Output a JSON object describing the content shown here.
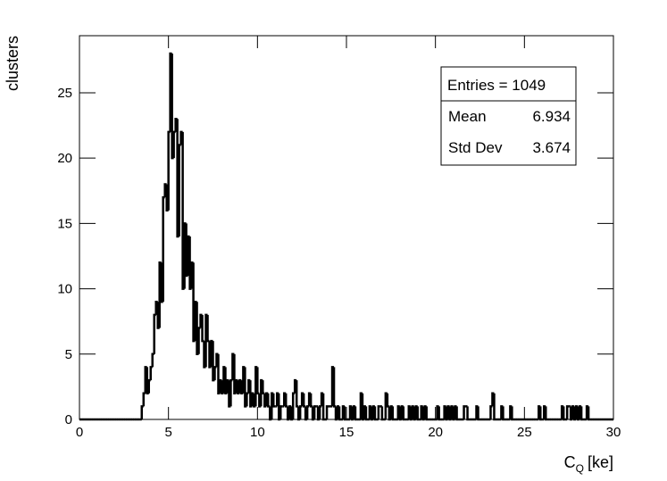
{
  "chart_data": {
    "type": "histogram",
    "ylabel": "clusters",
    "xlabel": {
      "main": "C",
      "sub": "Q",
      "unit": "[ke]"
    },
    "color": "#000000",
    "xlim": [
      0,
      30
    ],
    "ylim": [
      0,
      29.37
    ],
    "xticks": [
      0,
      5,
      10,
      15,
      20,
      25,
      30
    ],
    "yticks": [
      0,
      5,
      10,
      15,
      20,
      25
    ],
    "stats": {
      "entries": "Entries = 1049",
      "rows": [
        {
          "label": "Mean",
          "value": 6.934
        },
        {
          "label": "Std Dev",
          "value": 3.674
        }
      ]
    },
    "bins": [
      0,
      0.1,
      0.2,
      0.3,
      0.4,
      0.5,
      0.6,
      0.7,
      0.8,
      0.9,
      1,
      1.1,
      1.2,
      1.3,
      1.4,
      1.5,
      1.6,
      1.7,
      1.8,
      1.9,
      2,
      2.1,
      2.2,
      2.3,
      2.4,
      2.5,
      2.6,
      2.7,
      2.8,
      2.9,
      3,
      3.1,
      3.2,
      3.3,
      3.4,
      3.5,
      3.6,
      3.7,
      3.8,
      3.9,
      4,
      4.1,
      4.2,
      4.3,
      4.4,
      4.5,
      4.6,
      4.7,
      4.8,
      4.9,
      5,
      5.1,
      5.2,
      5.3,
      5.4,
      5.5,
      5.6,
      5.7,
      5.8,
      5.9,
      6,
      6.1,
      6.2,
      6.3,
      6.4,
      6.5,
      6.6,
      6.7,
      6.8,
      6.9,
      7,
      7.1,
      7.2,
      7.3,
      7.4,
      7.5,
      7.6,
      7.7,
      7.8,
      7.9,
      8,
      8.1,
      8.2,
      8.3,
      8.4,
      8.5,
      8.6,
      8.7,
      8.8,
      8.9,
      9,
      9.1,
      9.2,
      9.3,
      9.4,
      9.5,
      9.6,
      9.7,
      9.8,
      9.9,
      10,
      10.1,
      10.2,
      10.3,
      10.4,
      10.5,
      10.6,
      10.7,
      10.8,
      10.9,
      11,
      11.1,
      11.2,
      11.3,
      11.4,
      11.5,
      11.6,
      11.7,
      11.8,
      11.9,
      12,
      12.1,
      12.2,
      12.3,
      12.4,
      12.5,
      12.6,
      12.7,
      12.8,
      12.9,
      13,
      13.1,
      13.2,
      13.3,
      13.4,
      13.5,
      13.6,
      13.7,
      13.8,
      13.9,
      14,
      14.1,
      14.2,
      14.3,
      14.4,
      14.5,
      14.6,
      14.7,
      14.8,
      14.9,
      15,
      15.1,
      15.2,
      15.3,
      15.4,
      15.5,
      15.6,
      15.7,
      15.8,
      15.9,
      16,
      16.1,
      16.2,
      16.3,
      16.4,
      16.5,
      16.6,
      16.7,
      16.8,
      16.9,
      17,
      17.1,
      17.2,
      17.3,
      17.4,
      17.5,
      17.6,
      17.7,
      17.8,
      17.9,
      18,
      18.1,
      18.2,
      18.3,
      18.4,
      18.5,
      18.6,
      18.7,
      18.8,
      18.9,
      19,
      19.1,
      19.2,
      19.3,
      19.4,
      19.5,
      19.6,
      19.7,
      19.8,
      19.9,
      20,
      20.1,
      20.2,
      20.3,
      20.4,
      20.5,
      20.6,
      20.7,
      20.8,
      20.9,
      21,
      21.1,
      21.2,
      21.3,
      21.4,
      21.5,
      21.6,
      21.7,
      21.8,
      21.9,
      22,
      22.1,
      22.2,
      22.3,
      22.4,
      22.5,
      22.6,
      22.7,
      22.8,
      22.9,
      23,
      23.1,
      23.2,
      23.3,
      23.4,
      23.5,
      23.6,
      23.7,
      23.8,
      23.9,
      24,
      24.1,
      24.2,
      24.3,
      24.4,
      24.5,
      24.6,
      24.7,
      24.8,
      24.9,
      25,
      25.1,
      25.2,
      25.3,
      25.4,
      25.5,
      25.6,
      25.7,
      25.8,
      25.9,
      26,
      26.1,
      26.2,
      26.3,
      26.4,
      26.5,
      26.6,
      26.7,
      26.8,
      26.9,
      27,
      27.1,
      27.2,
      27.3,
      27.4,
      27.5,
      27.6,
      27.7,
      27.8,
      27.9,
      28,
      28.1,
      28.2,
      28.3,
      28.4,
      28.5,
      28.6,
      28.7,
      28.8,
      28.9,
      29,
      29.1,
      29.2,
      29.3,
      29.4,
      29.5,
      29.6,
      29.7,
      29.8,
      29.9,
      30
    ],
    "values": [
      0,
      0,
      0,
      0,
      0,
      0,
      0,
      0,
      0,
      0,
      0,
      0,
      0,
      0,
      0,
      0,
      0,
      0,
      0,
      0,
      0,
      0,
      0,
      0,
      0,
      0,
      0,
      0,
      0,
      0,
      0,
      0,
      0,
      0,
      0,
      1,
      2,
      4,
      2,
      3,
      4,
      5,
      8,
      9,
      7,
      12,
      9,
      17,
      18,
      16,
      22,
      28,
      20,
      22,
      23,
      14,
      21,
      22,
      10,
      15,
      11,
      14,
      10,
      12,
      6,
      9,
      5,
      7,
      8,
      6,
      4,
      8,
      6,
      4,
      6,
      3,
      4,
      5,
      2,
      3,
      2,
      4,
      2,
      3,
      1,
      3,
      5,
      2,
      3,
      2,
      3,
      2,
      4,
      1,
      2,
      3,
      1,
      2,
      1,
      4,
      2,
      1,
      3,
      2,
      1,
      2,
      1,
      0,
      2,
      1,
      1,
      2,
      0,
      1,
      1,
      2,
      1,
      0,
      1,
      0,
      2,
      3,
      1,
      0,
      1,
      2,
      1,
      0,
      1,
      2,
      1,
      0,
      1,
      1,
      0,
      1,
      2,
      0,
      0,
      1,
      1,
      1,
      4,
      1,
      0,
      1,
      0,
      0,
      1,
      0,
      0,
      0,
      1,
      0,
      1,
      0,
      0,
      0,
      2,
      0,
      1,
      0,
      0,
      1,
      0,
      1,
      0,
      0,
      1,
      1,
      0,
      0,
      2,
      1,
      0,
      1,
      0,
      0,
      0,
      1,
      0,
      1,
      0,
      0,
      0,
      1,
      0,
      1,
      0,
      1,
      0,
      0,
      1,
      0,
      1,
      0,
      0,
      0,
      0,
      0,
      0,
      1,
      0,
      0,
      0,
      1,
      0,
      1,
      0,
      1,
      0,
      1,
      0,
      0,
      0,
      0,
      1,
      1,
      0,
      0,
      0,
      0,
      0,
      1,
      0,
      0,
      0,
      0,
      0,
      0,
      0,
      1,
      2,
      0,
      0,
      0,
      0,
      1,
      0,
      0,
      0,
      0,
      1,
      0,
      0,
      0,
      0,
      0,
      0,
      0,
      0,
      0,
      0,
      0,
      0,
      0,
      0,
      0,
      1,
      0,
      0,
      1,
      0,
      0,
      0,
      0,
      0,
      0,
      0,
      0,
      0,
      1,
      0,
      0,
      1,
      1,
      0,
      1,
      0,
      1,
      0,
      1,
      0,
      0,
      0,
      1,
      0,
      0,
      0,
      0,
      0,
      0,
      0,
      0,
      0,
      0,
      0,
      0,
      0,
      0
    ]
  }
}
